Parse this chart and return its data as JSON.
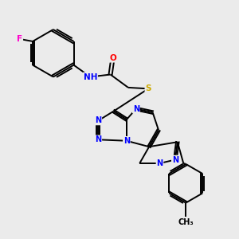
{
  "background_color": "#ebebeb",
  "atom_colors": {
    "N": "#0000ff",
    "O": "#ff0000",
    "S": "#ccaa00",
    "F": "#ff00cc",
    "H": "#0000ff",
    "C": "#000000"
  },
  "bond_color": "#000000",
  "bond_width": 1.4,
  "figsize": [
    3.0,
    3.0
  ],
  "dpi": 100
}
